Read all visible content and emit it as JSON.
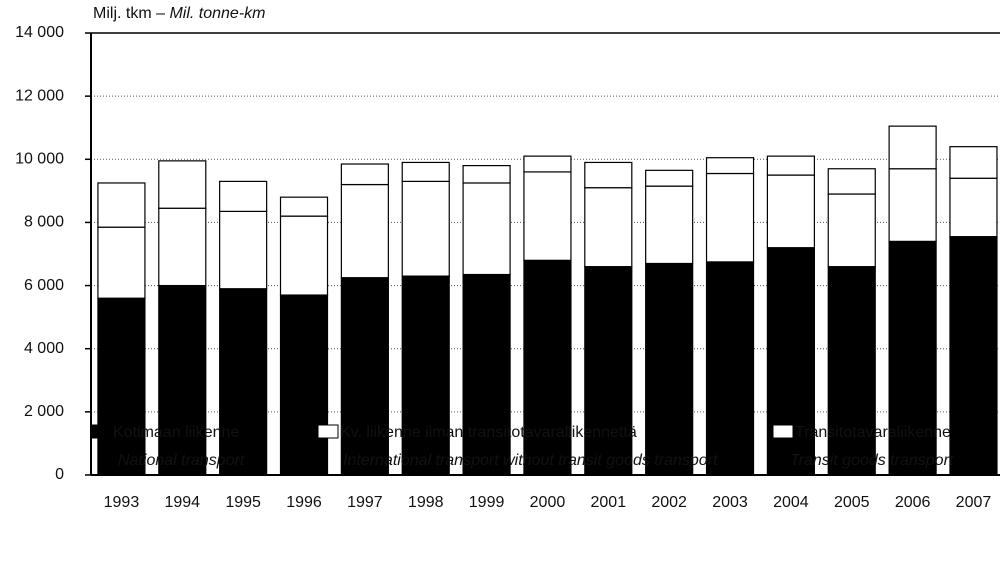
{
  "chart_data": {
    "type": "stacked_bar",
    "y_label": {
      "fi": "Milj. tkm –",
      "en": "Mil. tonne-km"
    },
    "categories": [
      "1993",
      "1994",
      "1995",
      "1996",
      "1997",
      "1998",
      "1999",
      "2000",
      "2001",
      "2002",
      "2003",
      "2004",
      "2005",
      "2006",
      "2007"
    ],
    "series": [
      {
        "name": "Kotimaan liikenne",
        "name_en": "National transport",
        "color": "#000000",
        "values": [
          5600,
          6000,
          5900,
          5700,
          6250,
          6300,
          6350,
          6800,
          6600,
          6700,
          6750,
          7200,
          6600,
          7400,
          7550
        ]
      },
      {
        "name": "Kv. liikenne ilman transitotavaraliikennettä",
        "name_en": "International transport without transit goods transport",
        "color": "#ffffff",
        "values": [
          2250,
          2450,
          2450,
          2500,
          2950,
          3000,
          2900,
          2800,
          2500,
          2450,
          2800,
          2300,
          2300,
          2300,
          1850
        ]
      },
      {
        "name": "Transitotavaraliikenne",
        "name_en": "Transit goods transport",
        "color": "#ffffff",
        "values": [
          1400,
          1500,
          950,
          600,
          650,
          600,
          550,
          500,
          800,
          500,
          500,
          600,
          800,
          1350,
          1000
        ]
      }
    ],
    "ylim": [
      0,
      14000
    ],
    "yticks": [
      0,
      {
        "value": 2000,
        "label": "2 000"
      },
      {
        "value": 4000,
        "label": "4 000"
      },
      {
        "value": 6000,
        "label": "6 000"
      },
      {
        "value": 8000,
        "label": "8 000"
      },
      {
        "value": 10000,
        "label": "10 000"
      },
      {
        "value": 12000,
        "label": "12 000"
      },
      {
        "value": 14000,
        "label": "14 000"
      }
    ],
    "grid": true
  }
}
